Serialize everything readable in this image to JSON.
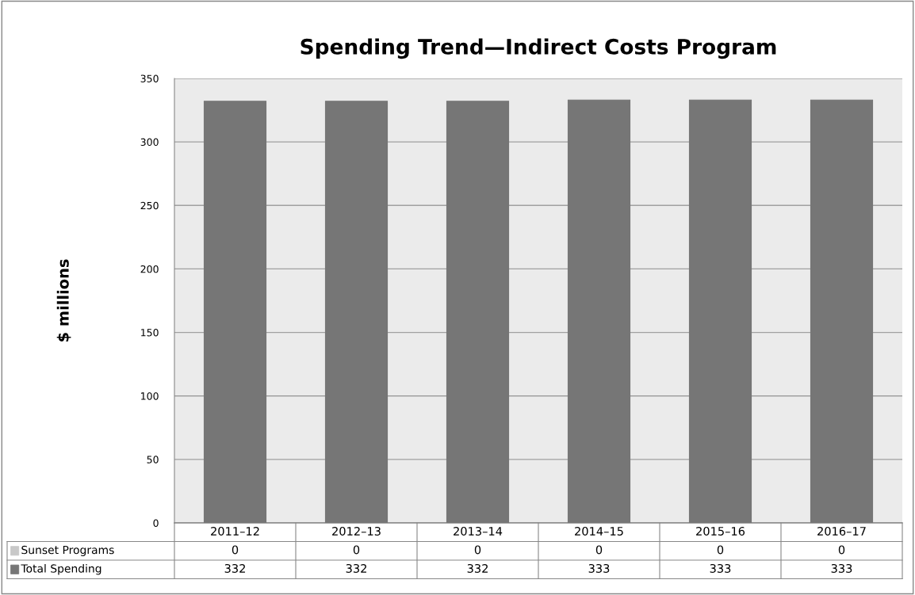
{
  "chart_data": {
    "type": "bar",
    "title": "Spending Trend—Indirect Costs Program",
    "ylabel": "$ millions",
    "categories": [
      "2011–12",
      "2012–13",
      "2013–14",
      "2014–15",
      "2015–16",
      "2016–17"
    ],
    "data_labels": true,
    "grid": "y",
    "legend": "bottom left",
    "ylim": [
      0,
      350
    ],
    "yticks": [
      0,
      50,
      100,
      150,
      200,
      250,
      300,
      350
    ],
    "series": [
      {
        "name": "Sunset Programs",
        "color": "#c8c8c8",
        "values": [
          0,
          0,
          0,
          0,
          0,
          0
        ]
      },
      {
        "name": "Total Spending",
        "color": "#767676",
        "values": [
          332,
          332,
          332,
          333,
          333,
          333
        ]
      }
    ]
  }
}
